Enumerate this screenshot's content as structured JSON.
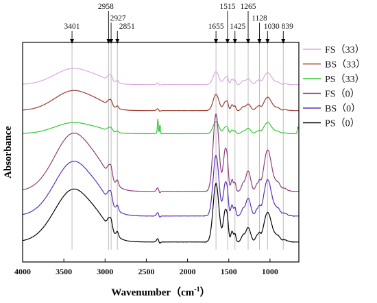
{
  "chart_data": {
    "type": "line",
    "xlabel": "Wavenumber（cm",
    "xlabel_sup": "-1",
    "xlabel_close": "）",
    "ylabel": "Absorbance",
    "xlim": [
      4000,
      650
    ],
    "x_reversed": true,
    "xticks": [
      4000,
      3500,
      3000,
      2500,
      2000,
      1500,
      1000
    ],
    "grid": false,
    "legend_position": "top-right",
    "peaks": [
      {
        "x": 3401,
        "label": "3401"
      },
      {
        "x": 2958,
        "label": "2958"
      },
      {
        "x": 2927,
        "label": "2927"
      },
      {
        "x": 2851,
        "label": "2851"
      },
      {
        "x": 1655,
        "label": "1655"
      },
      {
        "x": 1515,
        "label": "1515"
      },
      {
        "x": 1425,
        "label": "1425"
      },
      {
        "x": 1265,
        "label": "1265"
      },
      {
        "x": 1128,
        "label": "1128"
      },
      {
        "x": 1030,
        "label": "1030"
      },
      {
        "x": 839,
        "label": "839"
      }
    ],
    "series": [
      {
        "name": "FS（33）",
        "color": "#d9a8e2",
        "offset": 6.0,
        "scale": 1.6,
        "h3400": 0.5,
        "amide": 0.4,
        "fp": 0.4,
        "noise": 0.2
      },
      {
        "name": "BS（33）",
        "color": "#9b3a2e",
        "offset": 5.1,
        "scale": 1.6,
        "h3400": 0.62,
        "amide": 0.5,
        "fp": 0.45,
        "noise": 0.2
      },
      {
        "name": "PS（33）",
        "color": "#2ec82e",
        "offset": 4.3,
        "scale": 1.0,
        "h3400": 0.55,
        "amide": 0.6,
        "fp": 0.6,
        "noise": 0.3,
        "spike": true
      },
      {
        "name": "FS（0）",
        "color": "#8c3d7a",
        "offset": 2.3,
        "scale": 3.2,
        "h3400": 0.9,
        "amide": 1.2,
        "fp": 0.7,
        "noise": 0.35
      },
      {
        "name": "BS（0）",
        "color": "#5b2fb8",
        "offset": 1.45,
        "scale": 3.0,
        "h3400": 0.9,
        "amide": 1.0,
        "fp": 0.65,
        "noise": 0.4
      },
      {
        "name": "PS（0）",
        "color": "#000000",
        "offset": 0.55,
        "scale": 2.9,
        "h3400": 0.9,
        "amide": 1.0,
        "fp": 0.55,
        "noise": 0.3
      }
    ]
  }
}
